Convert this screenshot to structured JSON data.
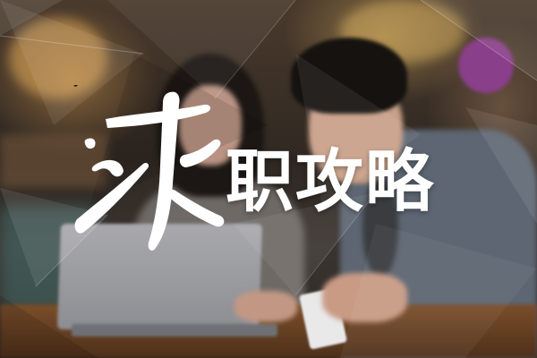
{
  "banner": {
    "calligraphy_char": "求",
    "title": "职攻略"
  },
  "colors": {
    "text": "#ffffff",
    "accent_purple": "#8a3f8a",
    "table_wood": "#7a4e2a"
  }
}
